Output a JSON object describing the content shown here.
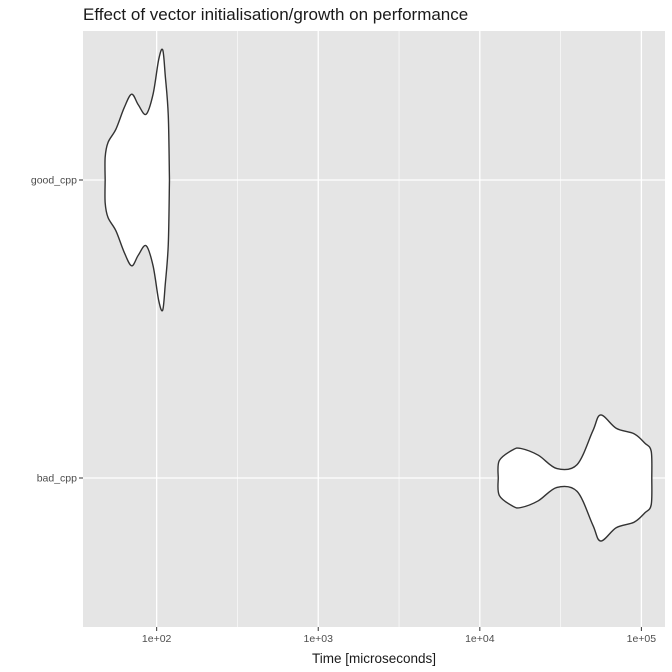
{
  "chart_data": {
    "type": "violin",
    "title": "Effect of vector initialisation/growth on performance",
    "xlabel": "Time [microseconds]",
    "ylabel": "",
    "x_scale": "log10",
    "xlim": [
      35,
      140000
    ],
    "x_ticks": [
      {
        "value": 100,
        "label": "1e+02"
      },
      {
        "value": 1000,
        "label": "1e+03"
      },
      {
        "value": 10000,
        "label": "1e+04"
      },
      {
        "value": 100000,
        "label": "1e+05"
      }
    ],
    "x_minor_ticks": [
      316,
      3162,
      31623
    ],
    "categories": [
      "good_cpp",
      "bad_cpp"
    ],
    "grid": true,
    "background": "#e5e5e5",
    "grid_color": "#ffffff",
    "violin_fill": "#ffffff",
    "violin_stroke": "#333333",
    "series": [
      {
        "category": "good_cpp",
        "density": [
          [
            48,
            0.0
          ],
          [
            48,
            0.17
          ],
          [
            50,
            0.28
          ],
          [
            56,
            0.38
          ],
          [
            63,
            0.54
          ],
          [
            70,
            0.64
          ],
          [
            77,
            0.56
          ],
          [
            86,
            0.49
          ],
          [
            95,
            0.64
          ],
          [
            103,
            0.9
          ],
          [
            109,
            0.97
          ],
          [
            113,
            0.78
          ],
          [
            118,
            0.48
          ],
          [
            120,
            0.0
          ]
        ]
      },
      {
        "category": "bad_cpp",
        "density": [
          [
            13000,
            0.0
          ],
          [
            13200,
            0.13
          ],
          [
            16000,
            0.21
          ],
          [
            18000,
            0.22
          ],
          [
            23000,
            0.17
          ],
          [
            30000,
            0.07
          ],
          [
            40000,
            0.1
          ],
          [
            50000,
            0.35
          ],
          [
            56000,
            0.47
          ],
          [
            70000,
            0.37
          ],
          [
            90000,
            0.33
          ],
          [
            105000,
            0.26
          ],
          [
            115000,
            0.2
          ],
          [
            116000,
            0.0
          ]
        ]
      }
    ]
  }
}
